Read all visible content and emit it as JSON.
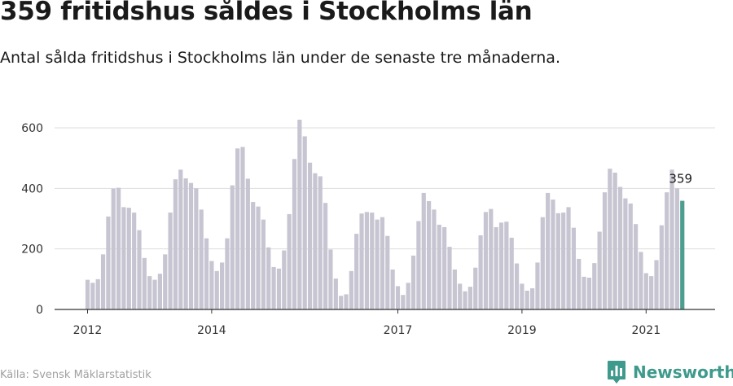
{
  "title": "359 fritidshus såldes i Stockholms län",
  "subtitle": "Antal sålda fritidshus i Stockholms län under de senaste tre månaderna.",
  "source": "Källa: Svensk Mäklarstatistik",
  "brand": {
    "name": "Newsworthy",
    "icon": "newsworthy-logo-icon",
    "color": "#3e9a8c"
  },
  "colors": {
    "bar": "#c7c5d1",
    "highlight": "#4e9e8f",
    "grid": "#dddddd",
    "axis": "#333333"
  },
  "chart_data": {
    "type": "bar",
    "title": "359 fritidshus såldes i Stockholms län",
    "subtitle": "Antal sålda fritidshus i Stockholms län under de senaste tre månaderna.",
    "xlabel": "",
    "ylabel": "",
    "ylim": [
      0,
      600
    ],
    "yticks": [
      0,
      200,
      400,
      600
    ],
    "grid": true,
    "legend": "none",
    "xtick_labels": [
      {
        "label": "2012",
        "index": 0
      },
      {
        "label": "2014",
        "index": 24
      },
      {
        "label": "2017",
        "index": 60
      },
      {
        "label": "2019",
        "index": 84
      },
      {
        "label": "2021",
        "index": 108
      }
    ],
    "values": [
      98,
      88,
      100,
      182,
      307,
      399,
      402,
      338,
      336,
      320,
      262,
      170,
      110,
      98,
      118,
      182,
      320,
      430,
      462,
      433,
      418,
      400,
      330,
      235,
      160,
      127,
      155,
      235,
      410,
      532,
      537,
      432,
      355,
      340,
      297,
      205,
      140,
      135,
      195,
      315,
      497,
      627,
      572,
      485,
      450,
      440,
      352,
      198,
      102,
      45,
      50,
      127,
      250,
      317,
      322,
      320,
      297,
      305,
      243,
      132,
      77,
      48,
      88,
      178,
      292,
      385,
      358,
      330,
      280,
      272,
      207,
      132,
      85,
      60,
      75,
      138,
      245,
      322,
      332,
      272,
      287,
      290,
      237,
      152,
      85,
      62,
      70,
      155,
      305,
      385,
      363,
      318,
      320,
      338,
      270,
      167,
      108,
      105,
      153,
      257,
      387,
      465,
      452,
      405,
      367,
      350,
      282,
      190,
      120,
      110,
      163,
      278,
      387,
      462,
      400,
      359
    ],
    "highlight": {
      "index": 115,
      "value": 359,
      "label": "359"
    }
  }
}
